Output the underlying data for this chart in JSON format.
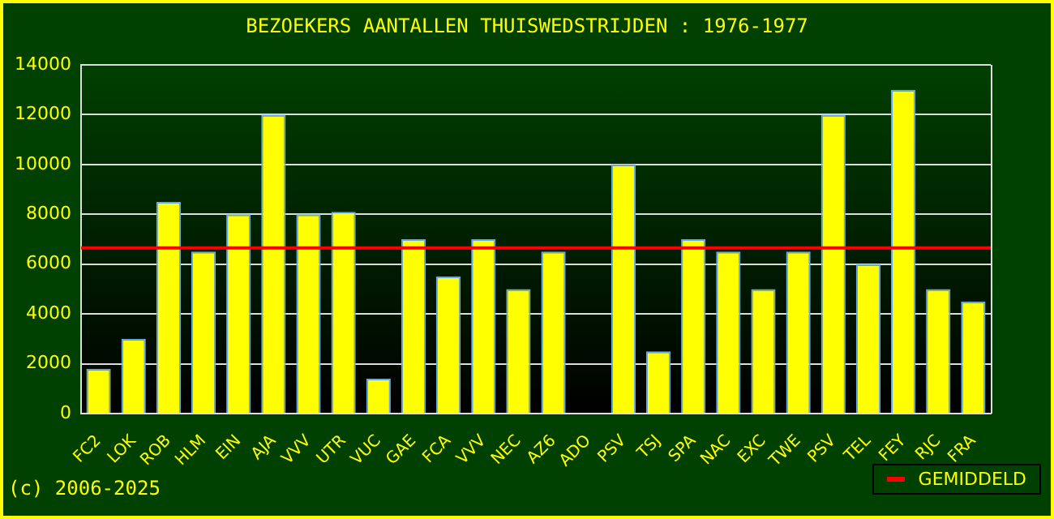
{
  "chart_data": {
    "type": "bar",
    "title": "BEZOEKERS AANTALLEN THUISWEDSTRIJDEN : 1976-1977",
    "categories": [
      "FC2",
      "LOK",
      "ROB",
      "HLM",
      "EIN",
      "AJA",
      "VVV",
      "UTR",
      "VUC",
      "GAE",
      "FCA",
      "VVV",
      "NEC",
      "AZ6",
      "ADO",
      "PSV",
      "TSJ",
      "SPA",
      "NAC",
      "EXC",
      "TWE",
      "PSV",
      "TEL",
      "FEY",
      "RJC",
      "FRA"
    ],
    "values": [
      1800,
      3000,
      8500,
      6500,
      8000,
      12000,
      8000,
      8100,
      1400,
      7000,
      5500,
      7000,
      5000,
      6500,
      null,
      10000,
      2500,
      7000,
      6500,
      5000,
      6500,
      12000,
      6000,
      13000,
      5000,
      4500
    ],
    "color": "#ffff00",
    "ylim": [
      0,
      14000
    ],
    "yticks": [
      0,
      2000,
      4000,
      6000,
      8000,
      10000,
      12000,
      14000
    ],
    "grid": "y",
    "ref_lines": [
      {
        "axis": "y",
        "value": 6650,
        "label": "GEMIDDELD",
        "color": "#ff0000"
      }
    ],
    "legend": "bottom right",
    "annotations": [
      "(c) 2006-2025"
    ]
  }
}
